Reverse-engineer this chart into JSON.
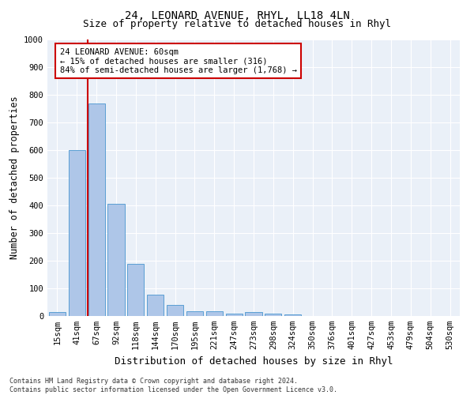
{
  "title": "24, LEONARD AVENUE, RHYL, LL18 4LN",
  "subtitle": "Size of property relative to detached houses in Rhyl",
  "xlabel": "Distribution of detached houses by size in Rhyl",
  "ylabel": "Number of detached properties",
  "categories": [
    "15sqm",
    "41sqm",
    "67sqm",
    "92sqm",
    "118sqm",
    "144sqm",
    "170sqm",
    "195sqm",
    "221sqm",
    "247sqm",
    "273sqm",
    "298sqm",
    "324sqm",
    "350sqm",
    "376sqm",
    "401sqm",
    "427sqm",
    "453sqm",
    "479sqm",
    "504sqm",
    "530sqm"
  ],
  "values": [
    15,
    600,
    770,
    405,
    190,
    78,
    40,
    18,
    17,
    8,
    13,
    8,
    7,
    0,
    0,
    0,
    0,
    0,
    0,
    0,
    0
  ],
  "bar_color": "#aec6e8",
  "bar_edge_color": "#5a9fd4",
  "vline_x_index": 1.55,
  "vline_color": "#cc0000",
  "annotation_text": "24 LEONARD AVENUE: 60sqm\n← 15% of detached houses are smaller (316)\n84% of semi-detached houses are larger (1,768) →",
  "annotation_box_color": "#ffffff",
  "annotation_box_edge_color": "#cc0000",
  "ylim": [
    0,
    1000
  ],
  "yticks": [
    0,
    100,
    200,
    300,
    400,
    500,
    600,
    700,
    800,
    900,
    1000
  ],
  "footer": "Contains HM Land Registry data © Crown copyright and database right 2024.\nContains public sector information licensed under the Open Government Licence v3.0.",
  "title_fontsize": 10,
  "subtitle_fontsize": 9,
  "xlabel_fontsize": 9,
  "ylabel_fontsize": 8.5,
  "tick_fontsize": 7.5,
  "background_color": "#eaf0f8",
  "grid_color": "#ffffff"
}
